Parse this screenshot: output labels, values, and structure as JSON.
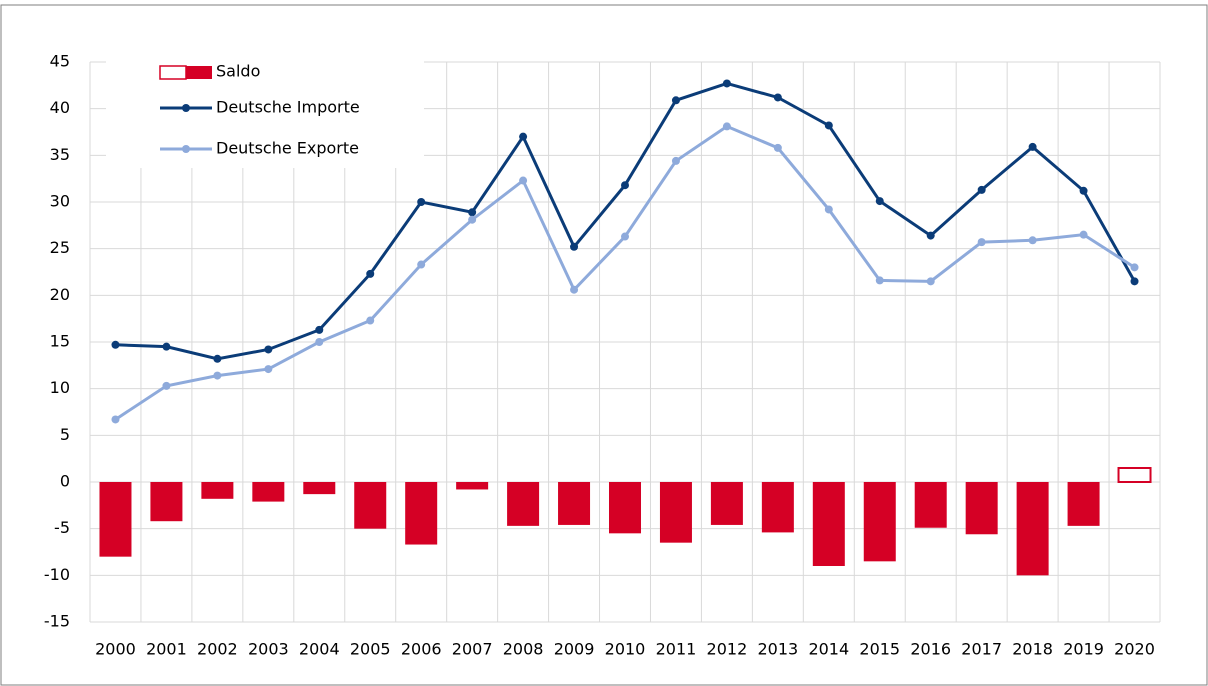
{
  "chart_data": {
    "type": "bar_line",
    "categories": [
      "2000",
      "2001",
      "2002",
      "2003",
      "2004",
      "2005",
      "2006",
      "2007",
      "2008",
      "2009",
      "2010",
      "2011",
      "2012",
      "2013",
      "2014",
      "2015",
      "2016",
      "2017",
      "2018",
      "2019",
      "2020"
    ],
    "series": [
      {
        "name": "Saldo",
        "type": "bar",
        "color": "#d50025",
        "positive_style": "outline",
        "values": [
          -8.0,
          -4.2,
          -1.8,
          -2.1,
          -1.3,
          -5.0,
          -6.7,
          -0.8,
          -4.7,
          -4.6,
          -5.5,
          -6.5,
          -4.6,
          -5.4,
          -9.0,
          -8.5,
          -4.9,
          -5.6,
          -10.0,
          -4.7,
          1.5
        ]
      },
      {
        "name": "Deutsche Importe",
        "type": "line",
        "color": "#0b3c78",
        "values": [
          14.7,
          14.5,
          13.2,
          14.2,
          16.3,
          22.3,
          30.0,
          28.9,
          37.0,
          25.2,
          31.8,
          40.9,
          42.7,
          41.2,
          38.2,
          30.1,
          26.4,
          31.3,
          35.9,
          31.2,
          21.5
        ]
      },
      {
        "name": "Deutsche Exporte",
        "type": "line",
        "color": "#8eaadb",
        "values": [
          6.7,
          10.3,
          11.4,
          12.1,
          15.0,
          17.3,
          23.3,
          28.1,
          32.3,
          20.6,
          26.3,
          34.4,
          38.1,
          35.8,
          29.2,
          21.6,
          21.5,
          25.7,
          25.9,
          26.5,
          23.0
        ]
      }
    ],
    "ylim": [
      -15,
      45
    ],
    "yticks": [
      -15,
      -10,
      -5,
      0,
      5,
      10,
      15,
      20,
      25,
      30,
      35,
      40,
      45
    ],
    "grid": true,
    "legend": "top-left"
  }
}
